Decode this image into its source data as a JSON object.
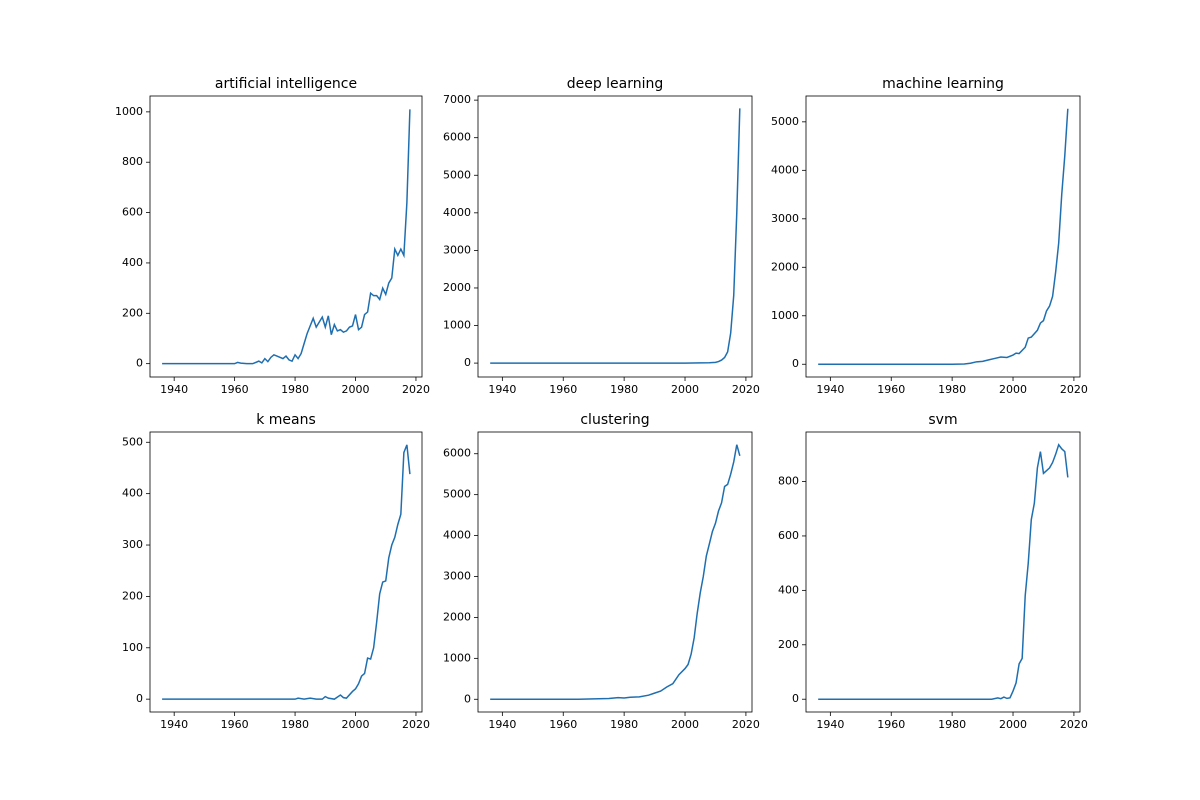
{
  "chart_data": [
    {
      "type": "line",
      "title": "artificial intelligence",
      "color": "#1f6fb0",
      "x": [
        1936,
        1960,
        1961,
        1962,
        1964,
        1966,
        1968,
        1969,
        1970,
        1971,
        1972,
        1973,
        1974,
        1976,
        1977,
        1978,
        1979,
        1980,
        1981,
        1982,
        1983,
        1984,
        1985,
        1986,
        1987,
        1988,
        1989,
        1990,
        1991,
        1992,
        1993,
        1994,
        1995,
        1996,
        1997,
        1998,
        1999,
        2000,
        2001,
        2002,
        2003,
        2004,
        2005,
        2006,
        2007,
        2008,
        2009,
        2010,
        2011,
        2012,
        2013,
        2014,
        2015,
        2016,
        2017,
        2018
      ],
      "values": [
        0,
        0,
        5,
        2,
        0,
        0,
        10,
        3,
        20,
        8,
        25,
        35,
        30,
        20,
        30,
        15,
        10,
        35,
        20,
        40,
        80,
        120,
        150,
        180,
        145,
        165,
        185,
        145,
        190,
        115,
        155,
        130,
        135,
        125,
        130,
        145,
        150,
        195,
        135,
        145,
        195,
        205,
        280,
        270,
        270,
        255,
        300,
        275,
        320,
        340,
        455,
        430,
        455,
        430,
        640,
        1010
      ],
      "xlim": [
        1932,
        2022
      ],
      "xticks": [
        1940,
        1960,
        1980,
        2000,
        2020
      ],
      "ylim": [
        -53,
        1063
      ],
      "yticks": [
        0,
        200,
        400,
        600,
        800,
        1000
      ]
    },
    {
      "type": "line",
      "title": "deep learning",
      "color": "#1f6fb0",
      "x": [
        1936,
        2000,
        2005,
        2008,
        2010,
        2011,
        2012,
        2013,
        2014,
        2015,
        2016,
        2017,
        2018
      ],
      "values": [
        0,
        0,
        5,
        10,
        20,
        40,
        80,
        150,
        300,
        800,
        1800,
        4000,
        6780
      ],
      "xlim": [
        1932,
        2022
      ],
      "xticks": [
        1940,
        1960,
        1980,
        2000,
        2020
      ],
      "ylim": [
        -370,
        7110
      ],
      "yticks": [
        0,
        1000,
        2000,
        3000,
        4000,
        5000,
        6000,
        7000
      ]
    },
    {
      "type": "line",
      "title": "machine learning",
      "color": "#1f6fb0",
      "x": [
        1936,
        1980,
        1984,
        1986,
        1988,
        1990,
        1992,
        1994,
        1996,
        1998,
        2000,
        2001,
        2002,
        2004,
        2005,
        2006,
        2008,
        2009,
        2010,
        2011,
        2012,
        2013,
        2014,
        2015,
        2016,
        2017,
        2018
      ],
      "values": [
        0,
        0,
        5,
        20,
        50,
        60,
        90,
        120,
        150,
        140,
        190,
        230,
        220,
        350,
        540,
        560,
        700,
        850,
        900,
        1100,
        1200,
        1400,
        1900,
        2500,
        3500,
        4300,
        5270
      ],
      "xlim": [
        1932,
        2022
      ],
      "xticks": [
        1940,
        1960,
        1980,
        2000,
        2020
      ],
      "ylim": [
        -263,
        5533
      ],
      "yticks": [
        0,
        1000,
        2000,
        3000,
        4000,
        5000
      ]
    },
    {
      "type": "line",
      "title": "k means",
      "color": "#1f6fb0",
      "x": [
        1936,
        1980,
        1981,
        1983,
        1985,
        1987,
        1989,
        1990,
        1991,
        1993,
        1995,
        1996,
        1997,
        1999,
        2000,
        2001,
        2002,
        2003,
        2004,
        2005,
        2006,
        2007,
        2008,
        2009,
        2010,
        2011,
        2012,
        2013,
        2014,
        2015,
        2016,
        2017,
        2018
      ],
      "values": [
        0,
        0,
        2,
        0,
        2,
        0,
        0,
        5,
        2,
        0,
        8,
        3,
        2,
        15,
        20,
        30,
        45,
        50,
        80,
        78,
        100,
        150,
        205,
        228,
        230,
        275,
        300,
        315,
        340,
        360,
        480,
        495,
        438
      ],
      "xlim": [
        1932,
        2022
      ],
      "xticks": [
        1940,
        1960,
        1980,
        2000,
        2020
      ],
      "ylim": [
        -25,
        520
      ],
      "yticks": [
        0,
        100,
        200,
        300,
        400,
        500
      ]
    },
    {
      "type": "line",
      "title": "clustering",
      "color": "#1f6fb0",
      "x": [
        1936,
        1965,
        1970,
        1975,
        1978,
        1980,
        1982,
        1985,
        1988,
        1990,
        1992,
        1994,
        1996,
        1998,
        2000,
        2001,
        2002,
        2003,
        2004,
        2005,
        2006,
        2007,
        2008,
        2009,
        2010,
        2011,
        2012,
        2013,
        2014,
        2015,
        2016,
        2017,
        2018
      ],
      "values": [
        0,
        0,
        10,
        20,
        40,
        30,
        50,
        60,
        100,
        150,
        200,
        300,
        380,
        600,
        750,
        850,
        1100,
        1500,
        2100,
        2600,
        3000,
        3500,
        3800,
        4100,
        4300,
        4600,
        4800,
        5200,
        5250,
        5500,
        5800,
        6220,
        5950
      ],
      "xlim": [
        1932,
        2022
      ],
      "xticks": [
        1940,
        1960,
        1980,
        2000,
        2020
      ],
      "ylim": [
        -311,
        6531
      ],
      "yticks": [
        0,
        1000,
        2000,
        3000,
        4000,
        5000,
        6000
      ]
    },
    {
      "type": "line",
      "title": "svm",
      "color": "#1f6fb0",
      "x": [
        1936,
        1993,
        1995,
        1996,
        1997,
        1998,
        1999,
        2000,
        2001,
        2002,
        2003,
        2004,
        2005,
        2006,
        2007,
        2008,
        2009,
        2010,
        2011,
        2012,
        2013,
        2014,
        2015,
        2016,
        2017,
        2018
      ],
      "values": [
        0,
        0,
        5,
        2,
        8,
        3,
        5,
        30,
        60,
        130,
        150,
        380,
        500,
        660,
        720,
        850,
        910,
        830,
        840,
        850,
        870,
        900,
        935,
        920,
        910,
        815
      ],
      "xlim": [
        1932,
        2022
      ],
      "xticks": [
        1940,
        1960,
        1980,
        2000,
        2020
      ],
      "ylim": [
        -47,
        982
      ],
      "yticks": [
        0,
        200,
        400,
        600,
        800
      ]
    }
  ]
}
